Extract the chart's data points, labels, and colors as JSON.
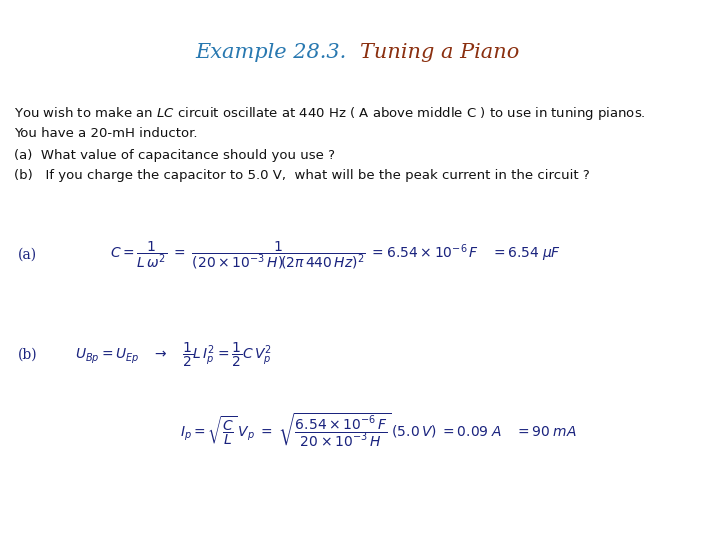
{
  "bg_color": "#ffffff",
  "title_blue": "Example 28.3.  ",
  "title_brown": "Tuning a Piano",
  "title_blue_color": "#2878b0",
  "title_brown_color": "#8b3010",
  "title_fontsize": 15,
  "body_fontsize": 9.5,
  "formula_color": "#1a237e",
  "formula_fontsize": 10,
  "label_fontsize": 10,
  "line1": "You wish to make an $LC$ circuit oscillate at 440 Hz ( A above middle C ) to use in tuning pianos.",
  "line2": "You have a 20-mH inductor.",
  "line3": "(a)  What value of capacitance should you use ?",
  "line4": "(b)   If you charge the capacitor to 5.0 V,  what will be the peak current in the circuit ?",
  "label_a": "(a)",
  "label_b": "(b)",
  "formula_a": "$C = \\dfrac{1}{L\\,\\omega^2} \\;=\\; \\dfrac{1}{\\left(20\\times10^{-3}\\,H\\right)\\!\\left(2\\pi\\,440\\,Hz\\right)^2} \\;= 6.54\\times10^{-6}\\,F \\quad= 6.54\\;\\mu F$",
  "formula_b1": "$U_{Bp} = U_{Ep} \\quad\\rightarrow\\quad \\dfrac{1}{2}L\\,I_p^2 = \\dfrac{1}{2}C\\,V_p^2$",
  "formula_b2": "$I_p = \\sqrt{\\dfrac{C}{L}}\\,V_p \\;=\\; \\sqrt{\\dfrac{6.54\\times10^{-6}\\,F}{20\\times10^{-3}\\,H}}\\,(5.0\\,V) \\;= 0.09\\;A \\quad = 90\\;mA$"
}
